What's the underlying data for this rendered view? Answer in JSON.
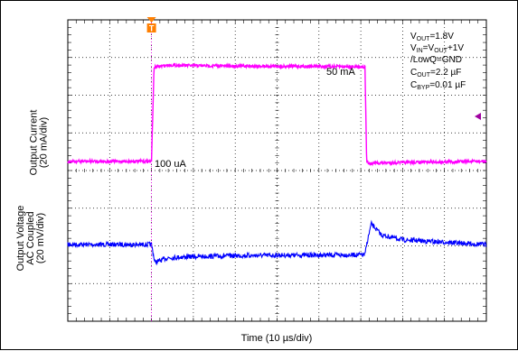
{
  "chart_data": {
    "type": "line",
    "title": "",
    "xlabel": "Time (10 µs/div)",
    "x_divisions": 10,
    "x_range_us": [
      0,
      100
    ],
    "y_divisions": 8,
    "grid": true,
    "series": [
      {
        "name": "Output Current",
        "axis_label": "Output Current\n(20 mA/div)",
        "color": "#ff00ff",
        "x_us": [
          0,
          19.8,
          20.0,
          20.6,
          24,
          30,
          40,
          50,
          60,
          70,
          71.0,
          71.4,
          72.0,
          74,
          80,
          90,
          100
        ],
        "values_mA": [
          0.1,
          0.1,
          0.1,
          50.0,
          51.2,
          50.9,
          50.7,
          50.6,
          50.5,
          50.3,
          50.2,
          0.1,
          -1.2,
          -0.8,
          -0.5,
          -0.2,
          0.1
        ],
        "annotations": [
          "50 mA",
          "100 uA"
        ]
      },
      {
        "name": "Output Voltage AC Coupled",
        "axis_label": "Output Voltage\nAC Coupled\n(20 mV/div)",
        "color": "#0000ff",
        "x_us": [
          0,
          19.8,
          20.0,
          20.8,
          24,
          30,
          40,
          50,
          60,
          70,
          71.0,
          71.4,
          72.5,
          75,
          80,
          90,
          100
        ],
        "values_mV": [
          0,
          0,
          0,
          -9.5,
          -7.0,
          -6.4,
          -5.9,
          -5.7,
          -5.6,
          -5.5,
          -5.4,
          0,
          11.0,
          5.0,
          2.5,
          1.2,
          0
        ]
      }
    ],
    "conditions": {
      "vout": "V<sub>OUT</sub>=1.8V",
      "vin": "V<sub>IN</sub>=V<sub>OUT</sub>+1V",
      "lowq": "/LowQ=GND",
      "cout": "C<sub>OUT</sub>=2.2 µF",
      "cbyp": "C<sub>BYP</sub>=0.01 µF"
    },
    "markers": {
      "trigger": "T",
      "trigger_color": "#ff7f00",
      "level_marker_color": "#a000a0"
    }
  }
}
